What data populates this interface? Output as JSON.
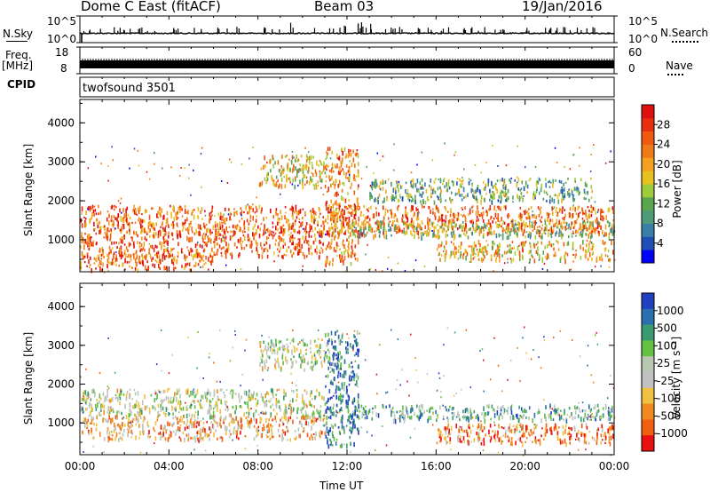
{
  "header": {
    "station": "Dome C East (fitACF)",
    "beam": "Beam 03",
    "date": "19/Jan/2016"
  },
  "top_panels": {
    "nsky_label": "N.Sky",
    "nsky_ticks": [
      "10^5",
      "10^0"
    ],
    "nsearch_label": "N.Search",
    "nsearch_ticks": [
      "10^5",
      "10^0"
    ],
    "freq_label": "Freq.",
    "freq_unit": "[MHz]",
    "freq_ticks": [
      "18",
      "8"
    ],
    "nave_label": "Nave",
    "nave_ticks": [
      "60",
      "0"
    ],
    "cpid_label": "CPID",
    "cpid_value": "twofsound 3501"
  },
  "chart_data": [
    {
      "type": "heatmap",
      "name": "power",
      "ylabel": "Slant Range [km]",
      "xlabel": "",
      "ylim": [
        180,
        4600
      ],
      "yticks": [
        "1000",
        "2000",
        "3000",
        "4000"
      ],
      "xlim": [
        0,
        24
      ],
      "colorbar": {
        "label": "Power [dB]",
        "ticks": [
          "4",
          "8",
          "12",
          "16",
          "20",
          "24",
          "28"
        ],
        "colors": [
          "#0000ff",
          "#1f4fb4",
          "#3a7fa8",
          "#4f9a78",
          "#5aa64e",
          "#9fcc3a",
          "#e8c020",
          "#f5a020",
          "#f07a18",
          "#f05a10",
          "#e83010",
          "#e01010"
        ]
      },
      "bands": [
        {
          "x": [
            0,
            24
          ],
          "y": [
            1200,
            1900
          ],
          "level": 0.75
        },
        {
          "x": [
            0,
            11
          ],
          "y": [
            600,
            1250
          ],
          "level": 0.8
        },
        {
          "x": [
            0,
            6
          ],
          "y": [
            250,
            650
          ],
          "level": 0.75
        },
        {
          "x": [
            8,
            11
          ],
          "y": [
            2400,
            3200
          ],
          "level": 0.55
        },
        {
          "x": [
            12,
            24
          ],
          "y": [
            1100,
            1500
          ],
          "level": 0.45
        },
        {
          "x": [
            13,
            23
          ],
          "y": [
            2000,
            2600
          ],
          "level": 0.35
        },
        {
          "x": [
            16,
            24
          ],
          "y": [
            500,
            1000
          ],
          "level": 0.6
        },
        {
          "x": [
            11,
            12.5
          ],
          "y": [
            400,
            3400
          ],
          "level": 0.7
        }
      ]
    },
    {
      "type": "heatmap",
      "name": "velocity",
      "ylabel": "Slant Range [km]",
      "xlabel": "Time UT",
      "ylim": [
        180,
        4600
      ],
      "yticks": [
        "1000",
        "2000",
        "3000",
        "4000"
      ],
      "xticks": [
        "00:00",
        "04:00",
        "08:00",
        "12:00",
        "16:00",
        "20:00",
        "00:00"
      ],
      "xlim": [
        0,
        24
      ],
      "colorbar": {
        "label": "Velocity [m s⁻¹]",
        "ticks": [
          "1000",
          "500",
          "100",
          "25",
          "-25",
          "-100",
          "-500",
          "-1000"
        ],
        "colors": [
          "#2040c0",
          "#2a70b0",
          "#3a9a70",
          "#66c040",
          "#b8c8b0",
          "#c0c0c0",
          "#f0c040",
          "#f08a20",
          "#f06010",
          "#e81010"
        ]
      },
      "bands": [
        {
          "x": [
            0,
            11
          ],
          "y": [
            1200,
            1900
          ],
          "level": 0.5
        },
        {
          "x": [
            0,
            11
          ],
          "y": [
            600,
            1200
          ],
          "level": 0.7
        },
        {
          "x": [
            8,
            11
          ],
          "y": [
            2400,
            3200
          ],
          "level": 0.5
        },
        {
          "x": [
            12,
            24
          ],
          "y": [
            1100,
            1500
          ],
          "level": 0.3
        },
        {
          "x": [
            16,
            24
          ],
          "y": [
            500,
            1000
          ],
          "level": 0.8
        },
        {
          "x": [
            11,
            12.5
          ],
          "y": [
            400,
            3400
          ],
          "level": 0.2
        }
      ]
    }
  ]
}
